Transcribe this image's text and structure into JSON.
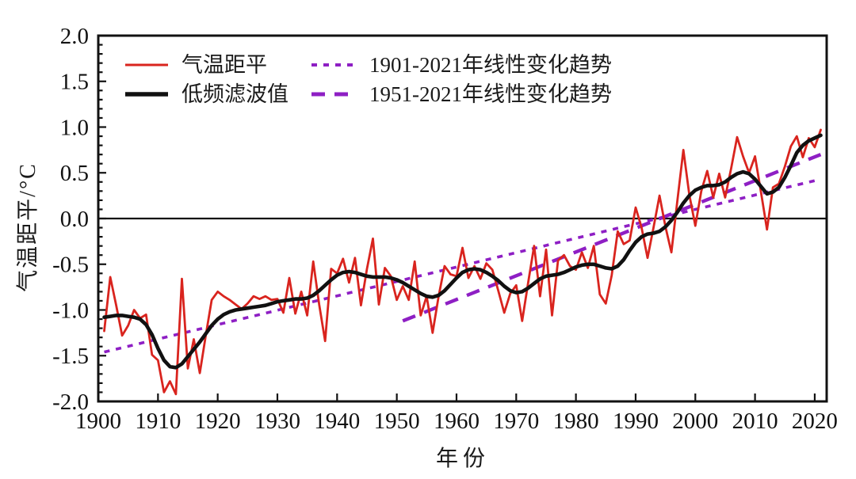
{
  "figure": {
    "y_axis_title": "气温距平/°C",
    "x_axis_title": "年份"
  },
  "legend": {
    "items": [
      {
        "label": "气温距平",
        "style": "solid",
        "color": "#d9241e"
      },
      {
        "label": "低频滤波值",
        "style": "solid",
        "color": "#111111"
      },
      {
        "label": "1901-2021年线性变化趋势",
        "style": "dotted",
        "color": "#8e1fc4"
      },
      {
        "label": "1951-2021年线性变化趋势",
        "style": "dashed",
        "color": "#8e1fc4"
      }
    ]
  },
  "chart_data": {
    "type": "line",
    "title": "",
    "xlabel": "年份",
    "ylabel": "气温距平/°C",
    "xlim": [
      1900,
      2022
    ],
    "ylim": [
      -2.0,
      2.0
    ],
    "grid": false,
    "legend_position": "top-left-inside",
    "x_ticks": [
      1900,
      1910,
      1920,
      1930,
      1940,
      1950,
      1960,
      1970,
      1980,
      1990,
      2000,
      2010,
      2020
    ],
    "y_ticks": [
      -2.0,
      -1.5,
      -1.0,
      -0.5,
      0.0,
      0.5,
      1.0,
      1.5,
      2.0
    ],
    "y_minor_step": 0.1,
    "series": [
      {
        "name": "气温距平",
        "id": "anomaly",
        "color": "#d9241e",
        "width": 2.8,
        "start_year": 1901,
        "values": [
          -1.23,
          -0.64,
          -0.95,
          -1.28,
          -1.17,
          -1.0,
          -1.09,
          -1.05,
          -1.49,
          -1.55,
          -1.9,
          -1.78,
          -1.92,
          -0.66,
          -1.64,
          -1.32,
          -1.69,
          -1.28,
          -0.89,
          -0.8,
          -0.85,
          -0.89,
          -0.94,
          -0.99,
          -0.93,
          -0.85,
          -0.88,
          -0.85,
          -0.89,
          -0.88,
          -1.03,
          -0.65,
          -1.04,
          -0.8,
          -1.06,
          -0.47,
          -0.94,
          -1.34,
          -0.55,
          -0.6,
          -0.44,
          -0.7,
          -0.43,
          -0.95,
          -0.55,
          -0.22,
          -0.94,
          -0.54,
          -0.63,
          -0.89,
          -0.74,
          -0.89,
          -0.47,
          -1.06,
          -0.85,
          -1.25,
          -0.85,
          -0.52,
          -0.61,
          -0.63,
          -0.32,
          -0.65,
          -0.52,
          -0.66,
          -0.49,
          -0.56,
          -0.79,
          -1.03,
          -0.82,
          -0.73,
          -1.12,
          -0.7,
          -0.3,
          -0.85,
          -0.34,
          -1.06,
          -0.46,
          -0.4,
          -0.52,
          -0.56,
          -0.37,
          -0.54,
          -0.3,
          -0.83,
          -0.93,
          -0.62,
          -0.14,
          -0.28,
          -0.24,
          0.12,
          -0.1,
          -0.43,
          -0.1,
          0.25,
          -0.09,
          -0.37,
          0.2,
          0.75,
          0.26,
          -0.08,
          0.3,
          0.52,
          0.23,
          0.49,
          0.23,
          0.55,
          0.89,
          0.68,
          0.5,
          0.68,
          0.29,
          -0.12,
          0.34,
          0.38,
          0.57,
          0.79,
          0.9,
          0.67,
          0.88,
          0.78,
          0.97
        ]
      },
      {
        "name": "低频滤波值",
        "id": "filtered",
        "color": "#111111",
        "width": 4.6,
        "start_year": 1901,
        "values": [
          -1.08,
          -1.07,
          -1.06,
          -1.06,
          -1.07,
          -1.08,
          -1.1,
          -1.16,
          -1.27,
          -1.42,
          -1.55,
          -1.62,
          -1.63,
          -1.59,
          -1.51,
          -1.43,
          -1.35,
          -1.26,
          -1.17,
          -1.1,
          -1.05,
          -1.02,
          -1.0,
          -0.99,
          -0.98,
          -0.97,
          -0.96,
          -0.95,
          -0.93,
          -0.91,
          -0.9,
          -0.89,
          -0.88,
          -0.88,
          -0.87,
          -0.84,
          -0.79,
          -0.73,
          -0.67,
          -0.62,
          -0.59,
          -0.58,
          -0.59,
          -0.61,
          -0.63,
          -0.64,
          -0.64,
          -0.64,
          -0.65,
          -0.67,
          -0.7,
          -0.74,
          -0.78,
          -0.82,
          -0.85,
          -0.86,
          -0.84,
          -0.79,
          -0.72,
          -0.65,
          -0.59,
          -0.56,
          -0.55,
          -0.56,
          -0.59,
          -0.63,
          -0.68,
          -0.74,
          -0.79,
          -0.81,
          -0.8,
          -0.76,
          -0.71,
          -0.66,
          -0.63,
          -0.62,
          -0.61,
          -0.59,
          -0.56,
          -0.53,
          -0.51,
          -0.5,
          -0.5,
          -0.52,
          -0.54,
          -0.55,
          -0.52,
          -0.45,
          -0.35,
          -0.26,
          -0.2,
          -0.17,
          -0.16,
          -0.14,
          -0.09,
          -0.02,
          0.07,
          0.17,
          0.25,
          0.31,
          0.34,
          0.36,
          0.36,
          0.37,
          0.4,
          0.45,
          0.49,
          0.51,
          0.49,
          0.43,
          0.35,
          0.27,
          0.29,
          0.34,
          0.45,
          0.58,
          0.72,
          0.8,
          0.85,
          0.88,
          0.91
        ]
      }
    ],
    "trends": [
      {
        "name": "1901-2021年线性变化趋势",
        "id": "trend-1901-2021",
        "dash": "dotted",
        "color": "#8e1fc4",
        "x": [
          1901,
          2021
        ],
        "y": [
          -1.46,
          0.43
        ],
        "slope_per_decade": 0.16
      },
      {
        "name": "1951-2021年线性变化趋势",
        "id": "trend-1951-2021",
        "dash": "dashed",
        "color": "#8e1fc4",
        "x": [
          1951,
          2021
        ],
        "y": [
          -1.12,
          0.7
        ],
        "slope_per_decade": 0.26
      }
    ]
  }
}
